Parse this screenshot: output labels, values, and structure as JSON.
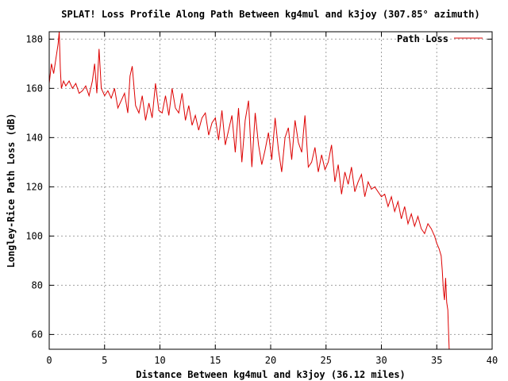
{
  "chart_data": {
    "type": "line",
    "title": "SPLAT! Loss Profile Along Path Between kg4mul and k3joy (307.85° azimuth)",
    "xlabel": "Distance Between kg4mul and k3joy (36.12 miles)",
    "ylabel": "Longley-Rice Path Loss (dB)",
    "xlim": [
      0,
      40
    ],
    "ylim": [
      54,
      183
    ],
    "xticks": [
      "0",
      "5",
      "10",
      "15",
      "20",
      "25",
      "30",
      "35",
      "40"
    ],
    "yticks": [
      "60",
      "80",
      "100",
      "120",
      "140",
      "160",
      "180"
    ],
    "xtick_values": [
      0,
      5,
      10,
      15,
      20,
      25,
      30,
      35,
      40
    ],
    "ytick_values": [
      60,
      80,
      100,
      120,
      140,
      160,
      180
    ],
    "grid": true,
    "legend": "top-right",
    "series": [
      {
        "name": "Path Loss",
        "color": "#dd0000",
        "x": [
          0.0,
          0.2,
          0.4,
          0.6,
          0.8,
          0.9,
          1.0,
          1.1,
          1.3,
          1.5,
          1.8,
          2.1,
          2.4,
          2.7,
          3.0,
          3.3,
          3.6,
          3.9,
          4.1,
          4.3,
          4.5,
          4.7,
          5.0,
          5.3,
          5.6,
          5.9,
          6.2,
          6.5,
          6.8,
          7.1,
          7.3,
          7.5,
          7.8,
          8.1,
          8.4,
          8.7,
          9.0,
          9.3,
          9.6,
          9.9,
          10.2,
          10.5,
          10.8,
          11.1,
          11.4,
          11.7,
          12.0,
          12.3,
          12.6,
          12.9,
          13.2,
          13.5,
          13.8,
          14.1,
          14.4,
          14.7,
          15.0,
          15.3,
          15.6,
          15.9,
          16.2,
          16.5,
          16.8,
          17.1,
          17.4,
          17.7,
          18.0,
          18.3,
          18.6,
          18.9,
          19.2,
          19.5,
          19.8,
          20.1,
          20.4,
          20.7,
          21.0,
          21.3,
          21.6,
          21.9,
          22.2,
          22.5,
          22.8,
          23.1,
          23.4,
          23.7,
          24.0,
          24.3,
          24.6,
          24.9,
          25.2,
          25.5,
          25.8,
          26.1,
          26.4,
          26.7,
          27.0,
          27.3,
          27.6,
          27.9,
          28.2,
          28.5,
          28.8,
          29.1,
          29.4,
          29.7,
          30.0,
          30.3,
          30.6,
          30.9,
          31.2,
          31.5,
          31.8,
          32.1,
          32.4,
          32.7,
          33.0,
          33.3,
          33.6,
          33.9,
          34.2,
          34.5,
          34.8,
          35.0,
          35.2,
          35.4,
          35.5,
          35.6,
          35.7,
          35.8,
          35.9,
          36.0,
          36.05,
          36.12
        ],
        "y": [
          162,
          170,
          166,
          172,
          178,
          183,
          168,
          160,
          163,
          161,
          163,
          160,
          162,
          158,
          159,
          161,
          157,
          163,
          170,
          158,
          176,
          160,
          157,
          159,
          156,
          160,
          152,
          155,
          158,
          150,
          165,
          169,
          153,
          150,
          157,
          147,
          154,
          148,
          162,
          151,
          150,
          157,
          149,
          160,
          152,
          150,
          158,
          147,
          153,
          145,
          149,
          143,
          148,
          150,
          141,
          146,
          148,
          139,
          151,
          137,
          143,
          149,
          134,
          152,
          130,
          147,
          155,
          128,
          150,
          137,
          129,
          135,
          142,
          131,
          148,
          135,
          126,
          140,
          144,
          131,
          147,
          138,
          134,
          149,
          128,
          130,
          136,
          126,
          133,
          127,
          130,
          137,
          122,
          129,
          117,
          126,
          121,
          128,
          118,
          122,
          125,
          116,
          122,
          119,
          120,
          118,
          116,
          117,
          112,
          116,
          110,
          114,
          107,
          112,
          105,
          109,
          104,
          108,
          103,
          101,
          105,
          103,
          100,
          97,
          95,
          92,
          86,
          78,
          74,
          83,
          73,
          70,
          63,
          54
        ]
      }
    ]
  }
}
